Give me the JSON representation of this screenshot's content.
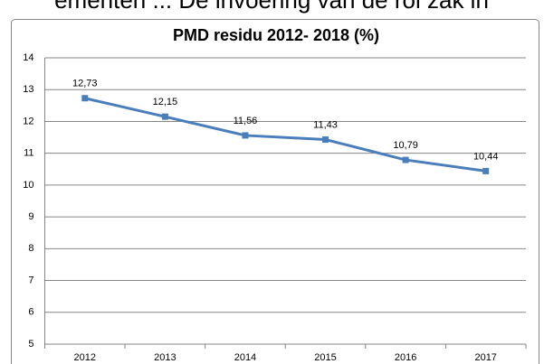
{
  "caption": "ementen ... De invoering van de rol zak in",
  "chart_data": {
    "type": "line",
    "title": "PMD residu 2012- 2018 (%)",
    "categories": [
      "2012",
      "2013",
      "2014",
      "2015",
      "2016",
      "2017"
    ],
    "values": [
      12.73,
      12.15,
      11.56,
      11.43,
      10.79,
      10.44
    ],
    "value_labels": [
      "12,73",
      "12,15",
      "11,56",
      "11,43",
      "10,79",
      "10,44"
    ],
    "color": "#4a7ebb",
    "ylim": [
      5,
      14
    ],
    "yticks": [
      5,
      6,
      7,
      8,
      9,
      10,
      11,
      12,
      13,
      14
    ],
    "grid": true
  }
}
